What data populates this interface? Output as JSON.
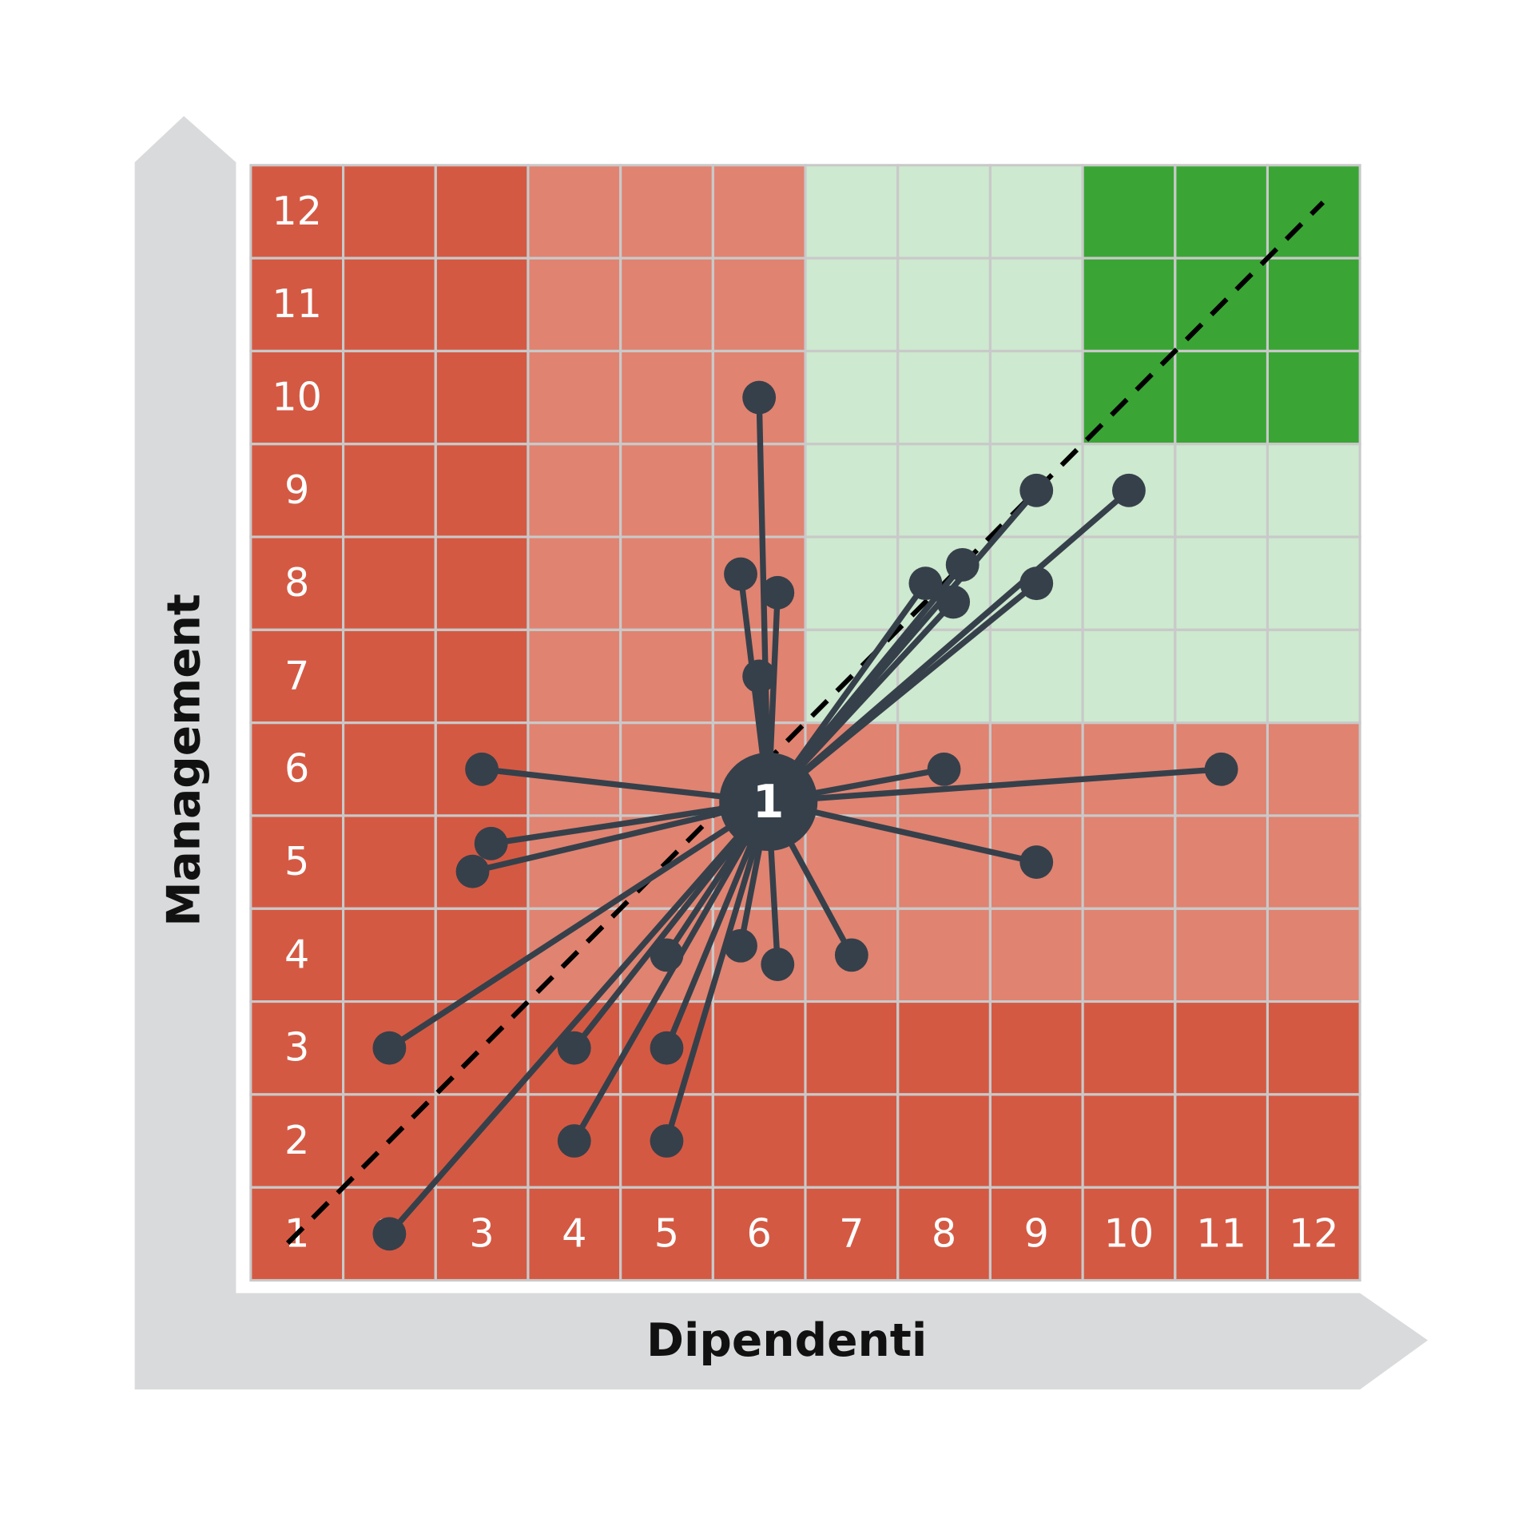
{
  "chart_data": {
    "type": "scatter",
    "xlabel": "Dipendenti",
    "ylabel": "Management",
    "xlim": [
      0.5,
      12.5
    ],
    "ylim": [
      0.5,
      12.5
    ],
    "xticks": [
      1,
      2,
      3,
      4,
      5,
      6,
      7,
      8,
      9,
      10,
      11,
      12
    ],
    "yticks": [
      1,
      2,
      3,
      4,
      5,
      6,
      7,
      8,
      9,
      10,
      11,
      12
    ],
    "grid": true,
    "grid_color": "#c9c9c9",
    "zones": [
      {
        "x": [
          0.5,
          12.5
        ],
        "y": [
          0.5,
          12.5
        ],
        "color": "#d45943"
      },
      {
        "x": [
          3.5,
          6.5
        ],
        "y": [
          3.5,
          12.5
        ],
        "color": "#e08371"
      },
      {
        "x": [
          3.5,
          12.5
        ],
        "y": [
          3.5,
          6.5
        ],
        "color": "#e08371"
      },
      {
        "x": [
          6.5,
          12.5
        ],
        "y": [
          6.5,
          12.5
        ],
        "color": "#cde9cf"
      },
      {
        "x": [
          9.5,
          12.5
        ],
        "y": [
          9.5,
          12.5
        ],
        "color": "#3aa535"
      }
    ],
    "reference_line": {
      "x": [
        0.9,
        12.1
      ],
      "y": [
        0.9,
        12.1
      ],
      "style": "dashed",
      "color": "#000000"
    },
    "hub": {
      "label": "1",
      "x": 6.1,
      "y": 5.65,
      "color": "#36404a"
    },
    "series": [
      {
        "color": "#36404a",
        "x": [
          6.0,
          5.8,
          6.2,
          6.0,
          9.0,
          10.0,
          7.8,
          8.2,
          8.1,
          9.0,
          3.0,
          8.0,
          11.0,
          3.1,
          2.9,
          9.0,
          5.0,
          5.8,
          6.2,
          7.0,
          2.0,
          4.0,
          5.0,
          4.0,
          5.0,
          2.0
        ],
        "y": [
          10.0,
          8.1,
          7.9,
          7.0,
          9.0,
          9.0,
          8.0,
          8.2,
          7.8,
          8.0,
          6.0,
          6.0,
          6.0,
          5.2,
          4.9,
          5.0,
          4.0,
          4.1,
          3.9,
          4.0,
          3.0,
          3.0,
          3.0,
          2.0,
          2.0,
          1.0
        ]
      }
    ]
  }
}
